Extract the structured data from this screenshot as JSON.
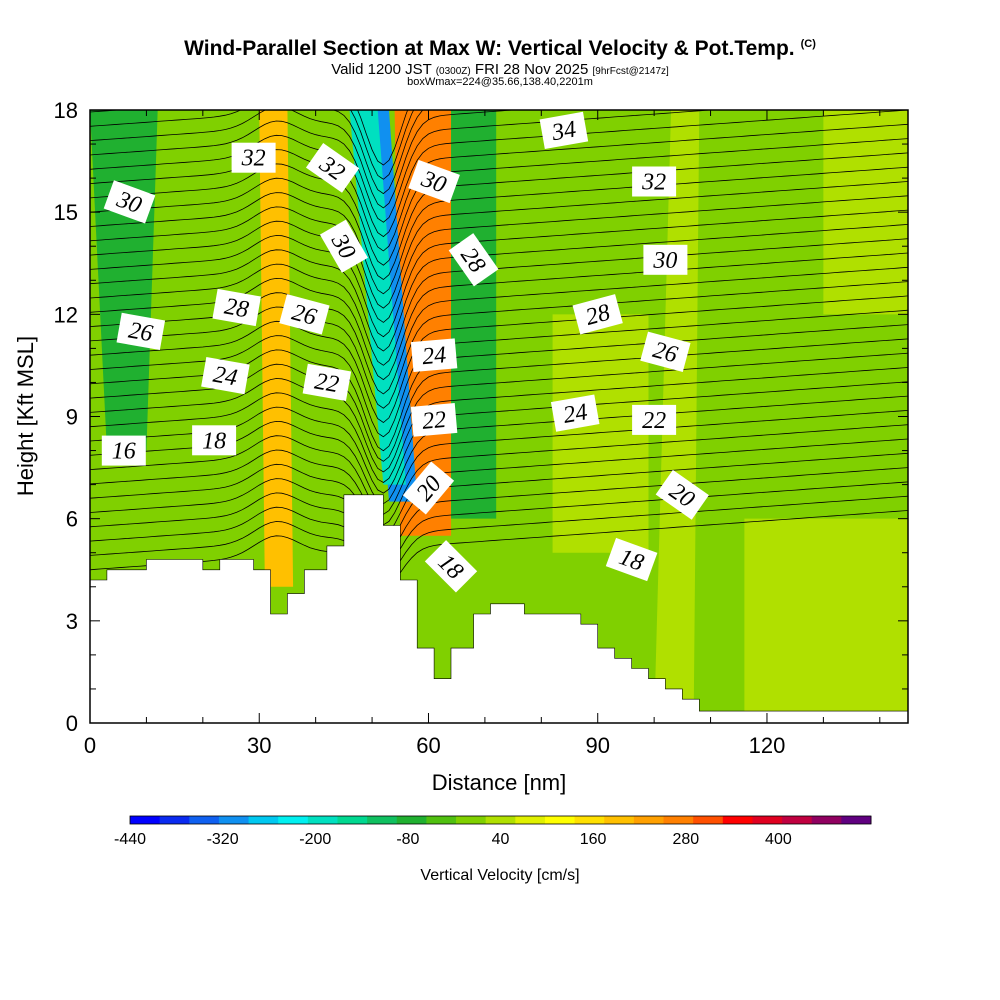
{
  "header": {
    "title": "Wind-Parallel Section at Max W: Vertical Velocity & Pot.Temp.",
    "copyright": "(C)",
    "valid_prefix": "Valid 1200 JST",
    "valid_utc": "(0300Z)",
    "valid_date": "FRI 28 Nov 2025",
    "forecast": "[9hrFcst@2147z]",
    "box_info": "boxWmax=224@35.66,138.40,2201m"
  },
  "colors": {
    "scale": [
      "#0000ff",
      "#0a2af0",
      "#1060f0",
      "#1090f0",
      "#00c8f0",
      "#00f0f0",
      "#00e0c0",
      "#00d890",
      "#10c060",
      "#20b030",
      "#50c010",
      "#80d000",
      "#b0e000",
      "#e0f000",
      "#ffff00",
      "#ffe000",
      "#ffc000",
      "#ffa000",
      "#ff8000",
      "#ff5000",
      "#ff0000",
      "#e00020",
      "#c00040",
      "#900060",
      "#600080"
    ]
  },
  "chart_data": {
    "type": "heatmap",
    "x": {
      "label": "Distance [nm]",
      "range": [
        0,
        145
      ],
      "ticks": [
        0,
        30,
        60,
        90,
        120
      ]
    },
    "y": {
      "label": "Height [Kft MSL]",
      "range": [
        0,
        18
      ],
      "ticks": [
        0,
        3,
        6,
        9,
        12,
        15,
        18
      ]
    },
    "colorbar": {
      "label": "Vertical Velocity [cm/s]",
      "min": -440,
      "max": 520,
      "step": 40,
      "tick_labels": [
        "-440",
        "-320",
        "-200",
        "-80",
        "40",
        "160",
        "280",
        "400"
      ]
    },
    "terrain_kft": [
      [
        0,
        4.2
      ],
      [
        3,
        4.2
      ],
      [
        3,
        4.5
      ],
      [
        10,
        4.5
      ],
      [
        10,
        4.8
      ],
      [
        20,
        4.8
      ],
      [
        20,
        4.5
      ],
      [
        23,
        4.5
      ],
      [
        23,
        4.8
      ],
      [
        29,
        4.8
      ],
      [
        29,
        4.5
      ],
      [
        32,
        4.5
      ],
      [
        32,
        3.2
      ],
      [
        35,
        3.2
      ],
      [
        35,
        3.8
      ],
      [
        38,
        3.8
      ],
      [
        38,
        4.5
      ],
      [
        42,
        4.5
      ],
      [
        42,
        5.2
      ],
      [
        45,
        5.2
      ],
      [
        45,
        6.7
      ],
      [
        52,
        6.7
      ],
      [
        52,
        5.8
      ],
      [
        55,
        5.8
      ],
      [
        55,
        4.2
      ],
      [
        58,
        4.2
      ],
      [
        58,
        2.2
      ],
      [
        61,
        2.2
      ],
      [
        61,
        1.3
      ],
      [
        64,
        1.3
      ],
      [
        64,
        2.2
      ],
      [
        68,
        2.2
      ],
      [
        68,
        3.2
      ],
      [
        71,
        3.2
      ],
      [
        71,
        3.5
      ],
      [
        77,
        3.5
      ],
      [
        77,
        3.2
      ],
      [
        87,
        3.2
      ],
      [
        87,
        2.9
      ],
      [
        90,
        2.9
      ],
      [
        90,
        2.2
      ],
      [
        93,
        2.2
      ],
      [
        93,
        1.9
      ],
      [
        96,
        1.9
      ],
      [
        96,
        1.6
      ],
      [
        99,
        1.6
      ],
      [
        99,
        1.3
      ],
      [
        102,
        1.3
      ],
      [
        102,
        1.0
      ],
      [
        105,
        1.0
      ],
      [
        105,
        0.7
      ],
      [
        108,
        0.7
      ],
      [
        108,
        0.35
      ],
      [
        145,
        0.35
      ]
    ],
    "w_features": [
      {
        "x0": 57,
        "x1": 62,
        "y0": 6.5,
        "y1": 18,
        "x0t": 57,
        "x1t": 62,
        "w": 400
      },
      {
        "x0": 55,
        "x1": 64,
        "y0": 5.5,
        "y1": 18,
        "x0t": 54,
        "x1t": 64,
        "w": 300
      },
      {
        "x0": 53,
        "x1": 58,
        "y0": 6.5,
        "y1": 18,
        "x0t": 48,
        "x1t": 53,
        "w": -320
      },
      {
        "x0": 52,
        "x1": 56,
        "y0": 7,
        "y1": 18,
        "x0t": 46,
        "x1t": 51,
        "w": -200
      },
      {
        "x0": 64,
        "x1": 72,
        "y0": 6,
        "y1": 18,
        "x0t": 64,
        "x1t": 72,
        "w": -80
      },
      {
        "x0": 31,
        "x1": 36,
        "y0": 4,
        "y1": 18,
        "x0t": 30,
        "x1t": 35,
        "w": 200
      },
      {
        "x0": 3,
        "x1": 10,
        "y0": 8,
        "y1": 18,
        "x0t": 0,
        "x1t": 12,
        "w": -80
      },
      {
        "x0": 82,
        "x1": 99,
        "y0": 5,
        "y1": 12,
        "x0t": 82,
        "x1t": 99,
        "w": 40
      },
      {
        "x0": 100,
        "x1": 107,
        "y0": 0,
        "y1": 18,
        "x0t": 103,
        "x1t": 108,
        "w": 40
      },
      {
        "x0": 116,
        "x1": 145,
        "y0": 0,
        "y1": 6,
        "x0t": 116,
        "x1t": 145,
        "w": 40
      },
      {
        "x0": 130,
        "x1": 145,
        "y0": 12,
        "y1": 18,
        "x0t": 130,
        "x1t": 145,
        "w": 40
      }
    ],
    "contour_labels": [
      {
        "text": "32",
        "x": 29,
        "y": 16.6,
        "angle": 0
      },
      {
        "text": "32",
        "x": 43,
        "y": 16.3,
        "angle": 35
      },
      {
        "text": "30",
        "x": 61,
        "y": 15.9,
        "angle": 20
      },
      {
        "text": "34",
        "x": 84,
        "y": 17.4,
        "angle": -10
      },
      {
        "text": "32",
        "x": 100,
        "y": 15.9,
        "angle": 0
      },
      {
        "text": "30",
        "x": 7,
        "y": 15.3,
        "angle": 20
      },
      {
        "text": "30",
        "x": 45,
        "y": 14.0,
        "angle": 60
      },
      {
        "text": "28",
        "x": 68,
        "y": 13.6,
        "angle": 55
      },
      {
        "text": "30",
        "x": 102,
        "y": 13.6,
        "angle": 0
      },
      {
        "text": "28",
        "x": 26,
        "y": 12.2,
        "angle": 10
      },
      {
        "text": "26",
        "x": 38,
        "y": 12.0,
        "angle": 15
      },
      {
        "text": "28",
        "x": 90,
        "y": 12.0,
        "angle": -15
      },
      {
        "text": "26",
        "x": 9,
        "y": 11.5,
        "angle": 10
      },
      {
        "text": "26",
        "x": 102,
        "y": 10.9,
        "angle": 15
      },
      {
        "text": "24",
        "x": 61,
        "y": 10.8,
        "angle": -5
      },
      {
        "text": "24",
        "x": 24,
        "y": 10.2,
        "angle": 10
      },
      {
        "text": "22",
        "x": 42,
        "y": 10.0,
        "angle": 10
      },
      {
        "text": "24",
        "x": 86,
        "y": 9.1,
        "angle": -10
      },
      {
        "text": "22",
        "x": 61,
        "y": 8.9,
        "angle": -5
      },
      {
        "text": "22",
        "x": 100,
        "y": 8.9,
        "angle": 0
      },
      {
        "text": "18",
        "x": 22,
        "y": 8.3,
        "angle": 0
      },
      {
        "text": "16",
        "x": 6,
        "y": 8.0,
        "angle": 0
      },
      {
        "text": "20",
        "x": 60,
        "y": 6.9,
        "angle": -50
      },
      {
        "text": "20",
        "x": 105,
        "y": 6.7,
        "angle": 35
      },
      {
        "text": "18",
        "x": 64,
        "y": 4.6,
        "angle": 45
      },
      {
        "text": "18",
        "x": 96,
        "y": 4.8,
        "angle": 20
      }
    ]
  }
}
